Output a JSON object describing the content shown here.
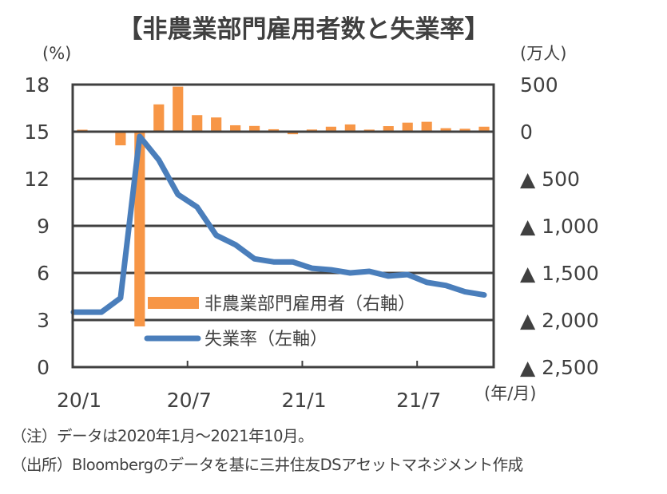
{
  "chart_data": {
    "type": "bar+line",
    "title": "【非農業部門雇用者数と失業率】",
    "left_axis": {
      "unit": "(%)",
      "ylim": [
        0,
        18
      ],
      "ticks": [
        0,
        3,
        6,
        9,
        12,
        15,
        18
      ],
      "tick_labels": [
        "0",
        "3",
        "6",
        "9",
        "12",
        "15",
        "18"
      ]
    },
    "right_axis": {
      "unit": "(万人)",
      "ylim": [
        -2500,
        500
      ],
      "ticks": [
        500,
        0,
        -500,
        -1000,
        -1500,
        -2000,
        -2500
      ],
      "tick_labels": [
        "500",
        "0",
        "▲ 500",
        "▲ 1,000",
        "▲ 1,500",
        "▲ 2,000",
        "▲ 2,500"
      ]
    },
    "x_axis": {
      "unit": "(年/月)",
      "tick_labels": [
        "20/1",
        "20/7",
        "21/1",
        "21/7"
      ],
      "tick_indices": [
        0,
        6,
        12,
        18
      ]
    },
    "categories": [
      "2020/1",
      "2020/2",
      "2020/3",
      "2020/4",
      "2020/5",
      "2020/6",
      "2020/7",
      "2020/8",
      "2020/9",
      "2020/10",
      "2020/11",
      "2020/12",
      "2021/1",
      "2021/2",
      "2021/3",
      "2021/4",
      "2021/5",
      "2021/6",
      "2021/7",
      "2021/8",
      "2021/9",
      "2021/10"
    ],
    "series": [
      {
        "name": "非農業部門雇用者（右軸）",
        "type": "bar",
        "axis": "right",
        "color": "#f79646",
        "values": [
          21,
          6,
          -145,
          -2068,
          290,
          478,
          176,
          151,
          68,
          61,
          26,
          -27,
          23,
          53,
          77,
          22,
          59,
          96,
          105,
          37,
          31,
          53
        ]
      },
      {
        "name": "失業率（左軸）",
        "type": "line",
        "axis": "left",
        "color": "#4a7ebb",
        "values": [
          3.5,
          3.5,
          4.4,
          14.7,
          13.2,
          11.0,
          10.2,
          8.4,
          7.8,
          6.9,
          6.7,
          6.7,
          6.3,
          6.2,
          6.0,
          6.1,
          5.8,
          5.9,
          5.4,
          5.2,
          4.8,
          4.6
        ]
      }
    ],
    "grid": true,
    "legend_position": "bottom-center inside"
  },
  "notes": {
    "note": "（注）データは2020年1月～2021年10月。",
    "source": "（出所）Bloombergのデータを基に三井住友DSアセットマネジメント作成"
  }
}
